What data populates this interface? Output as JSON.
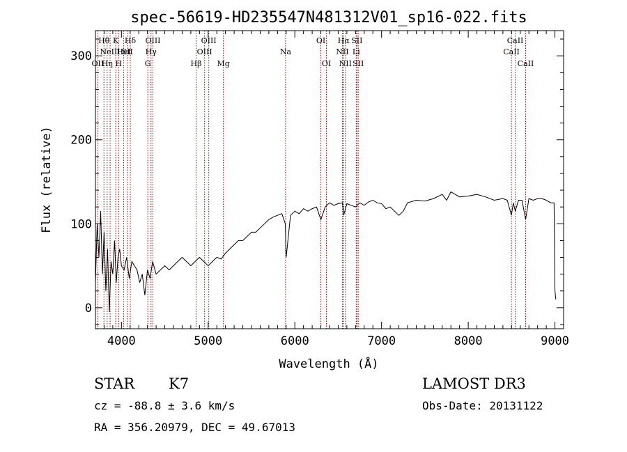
{
  "chart_data": {
    "type": "line",
    "title": "spec-56619-HD235547N481312V01_sp16-022.fits",
    "xlabel": "Wavelength (Å)",
    "ylabel": "Flux (relative)",
    "xlim": [
      3700,
      9100
    ],
    "ylim": [
      -25,
      330
    ],
    "xticks": [
      4000,
      5000,
      6000,
      7000,
      8000,
      9000
    ],
    "yticks": [
      0,
      100,
      200,
      300
    ],
    "grid": false,
    "legend": "none",
    "line_color": "#000000",
    "marker_color": "#aa0000",
    "series": [
      {
        "x": [
          3700,
          3720,
          3740,
          3760,
          3780,
          3800,
          3820,
          3840,
          3860,
          3880,
          3900,
          3920,
          3940,
          3960,
          3980,
          4000,
          4030,
          4060,
          4090,
          4120,
          4150,
          4180,
          4210,
          4240,
          4270,
          4300,
          4330,
          4360,
          4400,
          4450,
          4500,
          4550,
          4600,
          4650,
          4700,
          4750,
          4800,
          4850,
          4900,
          4950,
          5000,
          5050,
          5100,
          5150,
          5200,
          5250,
          5300,
          5350,
          5400,
          5450,
          5500,
          5550,
          5600,
          5650,
          5700,
          5750,
          5800,
          5850,
          5890,
          5900,
          5950,
          6000,
          6050,
          6100,
          6150,
          6200,
          6250,
          6300,
          6350,
          6400,
          6450,
          6500,
          6550,
          6563,
          6600,
          6650,
          6700,
          6750,
          6800,
          6850,
          6900,
          6950,
          7000,
          7050,
          7100,
          7150,
          7200,
          7250,
          7300,
          7400,
          7500,
          7600,
          7700,
          7750,
          7800,
          7900,
          8000,
          8100,
          8200,
          8300,
          8400,
          8450,
          8498,
          8520,
          8542,
          8580,
          8620,
          8662,
          8700,
          8750,
          8800,
          8850,
          8900,
          8950,
          8990,
          9000,
          9010
        ],
        "y": [
          30,
          100,
          60,
          115,
          40,
          90,
          20,
          70,
          -5,
          55,
          40,
          80,
          30,
          60,
          70,
          50,
          45,
          60,
          35,
          55,
          50,
          45,
          30,
          40,
          15,
          45,
          35,
          55,
          40,
          45,
          50,
          45,
          50,
          55,
          60,
          55,
          50,
          55,
          60,
          55,
          50,
          55,
          60,
          58,
          65,
          70,
          75,
          80,
          80,
          85,
          90,
          90,
          95,
          100,
          105,
          108,
          110,
          112,
          100,
          60,
          110,
          115,
          112,
          118,
          115,
          118,
          120,
          105,
          120,
          125,
          122,
          124,
          125,
          110,
          124,
          122,
          120,
          125,
          122,
          126,
          128,
          125,
          124,
          118,
          120,
          115,
          110,
          115,
          125,
          128,
          127,
          130,
          135,
          128,
          138,
          132,
          133,
          135,
          132,
          128,
          130,
          128,
          110,
          125,
          115,
          128,
          128,
          105,
          130,
          128,
          130,
          130,
          128,
          125,
          125,
          20,
          10
        ]
      }
    ],
    "lines": [
      {
        "x": 3727,
        "label": "OII",
        "row": 3
      },
      {
        "x": 3798,
        "label": "Hθ",
        "row": 1
      },
      {
        "x": 3835,
        "label": "Hη",
        "row": 3
      },
      {
        "x": 3869,
        "label": "NeIII",
        "row": 2
      },
      {
        "x": 3934,
        "label": "K",
        "row": 1
      },
      {
        "x": 3968,
        "label": "H",
        "row": 3
      },
      {
        "x": 4026,
        "label": "HeI",
        "row": 2
      },
      {
        "x": 4068,
        "label": "SII",
        "row": 2
      },
      {
        "x": 4102,
        "label": "Hδ",
        "row": 1
      },
      {
        "x": 4304,
        "label": "G",
        "row": 3
      },
      {
        "x": 4341,
        "label": "Hγ",
        "row": 2
      },
      {
        "x": 4363,
        "label": "OIII",
        "row": 1
      },
      {
        "x": 4861,
        "label": "Hβ",
        "row": 3
      },
      {
        "x": 4959,
        "label": "OIII",
        "row": 2
      },
      {
        "x": 5007,
        "label": "OIII",
        "row": 1
      },
      {
        "x": 5176,
        "label": "Mg",
        "row": 3
      },
      {
        "x": 5893,
        "label": "Na",
        "row": 2
      },
      {
        "x": 6300,
        "label": "OI",
        "row": 1
      },
      {
        "x": 6364,
        "label": "OI",
        "row": 3
      },
      {
        "x": 6548,
        "label": "NII",
        "row": 2
      },
      {
        "x": 6563,
        "label": "Hα",
        "row": 1
      },
      {
        "x": 6583,
        "label": "NII",
        "row": 3
      },
      {
        "x": 6708,
        "label": "Li",
        "row": 2
      },
      {
        "x": 6716,
        "label": "SII",
        "row": 1
      },
      {
        "x": 6731,
        "label": "SII",
        "row": 3
      },
      {
        "x": 8498,
        "label": "CaII",
        "row": 2
      },
      {
        "x": 8542,
        "label": "CaII",
        "row": 1
      },
      {
        "x": 8662,
        "label": "CaII",
        "row": 3
      }
    ]
  },
  "info": {
    "object_class": "STAR",
    "subclass": "K7",
    "survey": "LAMOST DR3",
    "cz": "cz = -88.8 ± 3.6 km/s",
    "obs_date": "Obs-Date: 20131122",
    "coords": "RA = 356.20979, DEC =  49.67013"
  }
}
